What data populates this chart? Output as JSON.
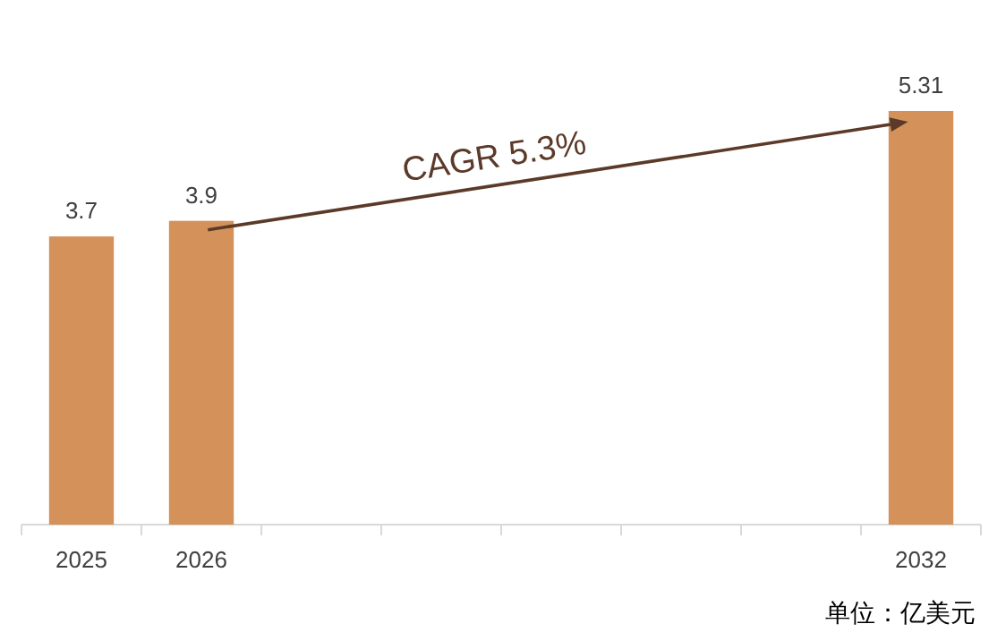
{
  "chart_data": {
    "type": "bar",
    "categories": [
      "2025",
      "2026",
      null,
      null,
      null,
      null,
      null,
      "2032"
    ],
    "values": [
      3.7,
      3.9,
      null,
      null,
      null,
      null,
      null,
      5.31
    ],
    "color": "#d4915a",
    "data_labels": true,
    "annotations": [
      "CAGR 5.3%",
      "单位：亿美元"
    ]
  }
}
